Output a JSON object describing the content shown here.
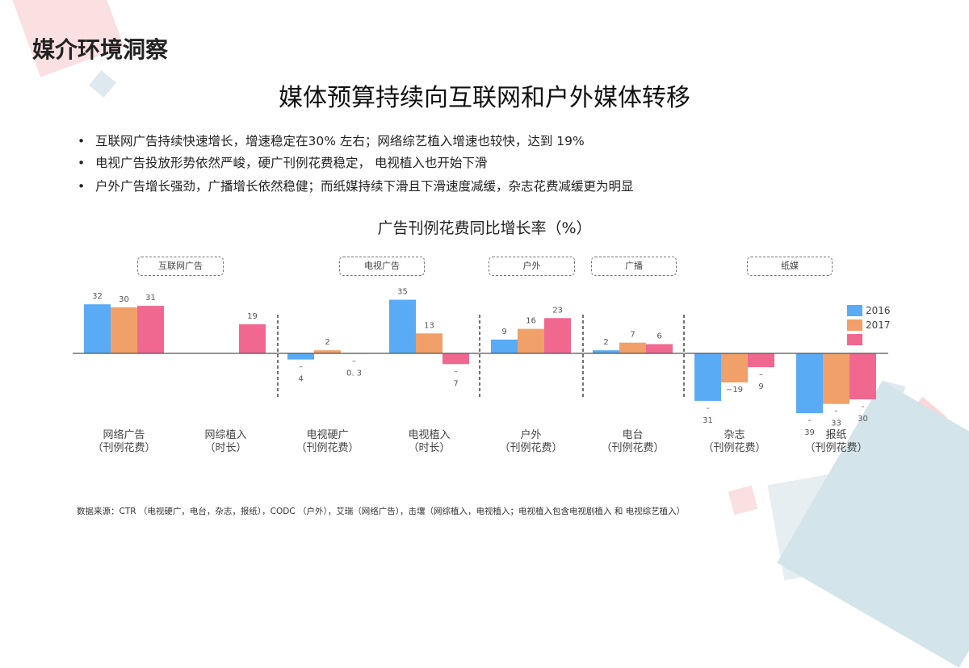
{
  "header": {
    "title": "媒介环境洞察",
    "subtitle": "媒体预算持续向互联网和户外媒体转移"
  },
  "bullets": [
    "互联网广告持续快速增长，增速稳定在30% 左右；网络综艺植入增速也较快，达到 19%",
    "电视广告投放形势依然严峻，硬广刊例花费稳定， 电视植入也开始下滑",
    "户外广告增长强劲，广播增长依然稳健；而纸媒持续下滑且下滑速度减缓，杂志花费减缓更为明显"
  ],
  "bullet_symbol": "•",
  "footnote": "数据来源：CTR （电视硬广，电台，杂志，报纸），CODC （户外），艾瑞（网络广告），击壤（网综植入，电视植入；电视植入包含电视剧植入 和 电视综艺植入）",
  "chart_data": {
    "type": "bar",
    "title": "广告刊例花费同比增长率（%）",
    "group_labels": [
      "互联网广告",
      "电视广告",
      "户外",
      "广播",
      "纸媒"
    ],
    "categories": [
      {
        "name": "网络广告",
        "sub": "（刊例花费）"
      },
      {
        "name": "网综植入",
        "sub": "（时长）"
      },
      {
        "name": "电视硬广",
        "sub": "（刊例花费）"
      },
      {
        "name": "电视植入",
        "sub": "（时长）"
      },
      {
        "name": "户外",
        "sub": "（刊例花费）"
      },
      {
        "name": "电台",
        "sub": "（刊例花费）"
      },
      {
        "name": "杂志",
        "sub": "（刊例花费）"
      },
      {
        "name": "报纸",
        "sub": "（刊例花费）"
      }
    ],
    "series": [
      {
        "name": "2016",
        "color": "#5aabf5",
        "values": [
          32,
          null,
          -4,
          35,
          9,
          2,
          -31,
          -39
        ],
        "labels": [
          "32",
          "",
          "–\n4",
          "35",
          "9",
          "2",
          "-\n31",
          "-\n39"
        ]
      },
      {
        "name": "2017",
        "color": "#f0a068",
        "values": [
          30,
          null,
          2,
          13,
          16,
          7,
          -19,
          -33
        ],
        "labels": [
          "30",
          "",
          "2",
          "13",
          "16",
          "7",
          "−19",
          "-\n33"
        ]
      },
      {
        "name": "",
        "color": "#f06890",
        "values": [
          31,
          19,
          -0.3,
          -7,
          23,
          6,
          -9,
          -30
        ],
        "labels": [
          "31",
          "19",
          "–\n0. 3",
          "–\n7",
          "23",
          "6",
          "–\n9",
          "-\n30"
        ]
      }
    ],
    "legend": "right",
    "grid": false
  }
}
